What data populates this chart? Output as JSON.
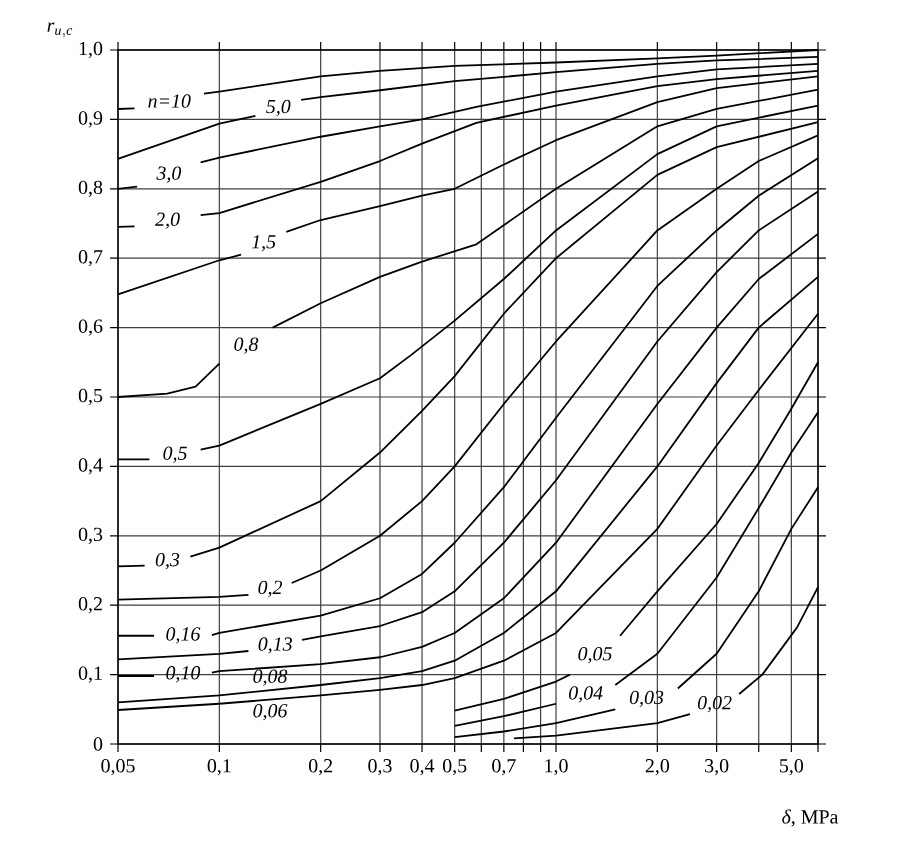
{
  "chart_data": {
    "type": "line",
    "xlabel": "*δ*, MPa",
    "ylabel": "r_{u, c}",
    "log": "x",
    "grid": true,
    "xlim": [
      0.05,
      6
    ],
    "ylim": [
      0,
      1
    ],
    "xticks": [
      {
        "value": 0.05,
        "label": "0,05"
      },
      {
        "value": 0.1,
        "label": "0,1"
      },
      {
        "value": 0.2,
        "label": "0,2"
      },
      {
        "value": 0.3,
        "label": "0,3"
      },
      {
        "value": 0.4,
        "label": "0,4"
      },
      {
        "value": 0.5,
        "label": "0,5"
      },
      {
        "value": 0.6,
        "label": null
      },
      {
        "value": 0.7,
        "label": "0,7"
      },
      {
        "value": 0.8,
        "label": null
      },
      {
        "value": 0.9,
        "label": null
      },
      {
        "value": 1.0,
        "label": "1,0"
      },
      {
        "value": 2.0,
        "label": "2,0"
      },
      {
        "value": 3.0,
        "label": "3,0"
      },
      {
        "value": 4.0,
        "label": null
      },
      {
        "value": 5.0,
        "label": "5,0"
      },
      {
        "value": 6.0,
        "label": null
      }
    ],
    "yticks": [
      0,
      {
        "value": 0.1,
        "label": "0,1"
      },
      {
        "value": 0.2,
        "label": "0,2"
      },
      {
        "value": 0.3,
        "label": "0,3"
      },
      {
        "value": 0.4,
        "label": "0,4"
      },
      {
        "value": 0.5,
        "label": "0,5"
      },
      {
        "value": 0.6,
        "label": "0,6"
      },
      {
        "value": 0.7,
        "label": "0,7"
      },
      {
        "value": 0.8,
        "label": "0,8"
      },
      {
        "value": 0.9,
        "label": "0,9"
      },
      {
        "value": 1.0,
        "label": "1,0"
      }
    ],
    "series": [
      {
        "name": "*n*=10",
        "color": "#000000",
        "x": [
          0.05,
          0.056,
          null,
          0.09,
          0.1,
          0.2,
          0.3,
          0.5,
          1,
          2,
          3,
          6
        ],
        "values": [
          0.915,
          0.916,
          null,
          0.937,
          0.94,
          0.962,
          0.97,
          0.977,
          0.982,
          0.988,
          0.992,
          1.0
        ]
      },
      {
        "name": "5,0",
        "color": "#000000",
        "x": [
          0.05,
          0.1,
          0.128,
          null,
          0.175,
          0.2,
          0.3,
          0.5,
          1,
          2,
          3,
          6
        ],
        "values": [
          0.843,
          0.894,
          0.905,
          null,
          0.928,
          0.932,
          0.942,
          0.955,
          0.968,
          0.98,
          0.985,
          0.99
        ]
      },
      {
        "name": "3,0",
        "color": "#000000",
        "x": [
          0.05,
          0.057,
          null,
          0.088,
          0.1,
          0.2,
          0.3,
          0.4,
          0.58,
          1,
          2,
          3,
          6
        ],
        "values": [
          0.8,
          0.803,
          null,
          0.838,
          0.845,
          0.875,
          0.89,
          0.9,
          0.918,
          0.94,
          0.962,
          0.972,
          0.98
        ]
      },
      {
        "name": "2,0",
        "color": "#000000",
        "x": [
          0.05,
          0.056,
          null,
          0.088,
          0.1,
          0.2,
          0.3,
          0.4,
          0.58,
          1,
          2,
          3,
          6
        ],
        "values": [
          0.745,
          0.746,
          null,
          0.762,
          0.765,
          0.81,
          0.84,
          0.865,
          0.895,
          0.92,
          0.948,
          0.958,
          0.97
        ]
      },
      {
        "name": "1,5",
        "color": "#000000",
        "x": [
          0.05,
          0.1,
          0.116,
          null,
          0.158,
          0.2,
          0.3,
          0.4,
          0.5,
          0.7,
          1,
          2,
          3,
          6
        ],
        "values": [
          0.648,
          0.697,
          0.705,
          null,
          0.738,
          0.755,
          0.775,
          0.79,
          0.8,
          0.835,
          0.87,
          0.925,
          0.945,
          0.962
        ]
      },
      {
        "name": "0,8",
        "color": "#000000",
        "x": [
          0.05,
          0.07,
          0.085,
          0.1,
          null,
          0.144,
          0.2,
          0.3,
          0.4,
          0.58,
          1,
          2,
          3,
          6
        ],
        "values": [
          0.5,
          0.505,
          0.515,
          0.548,
          null,
          0.6,
          0.635,
          0.673,
          0.695,
          0.72,
          0.8,
          0.89,
          0.915,
          0.943
        ]
      },
      {
        "name": "0,5",
        "color": "#000000",
        "x": [
          0.05,
          0.062,
          null,
          0.088,
          0.1,
          0.2,
          0.3,
          0.37,
          0.5,
          0.7,
          1,
          2,
          3,
          6
        ],
        "values": [
          0.41,
          0.41,
          null,
          0.424,
          0.43,
          0.49,
          0.527,
          0.56,
          0.61,
          0.67,
          0.74,
          0.85,
          0.89,
          0.92
        ]
      },
      {
        "name": "0,3",
        "color": "#000000",
        "x": [
          0.05,
          0.06,
          null,
          0.082,
          0.1,
          0.2,
          0.3,
          0.4,
          0.5,
          0.7,
          1,
          2,
          3,
          6
        ],
        "values": [
          0.256,
          0.257,
          null,
          0.27,
          0.283,
          0.35,
          0.42,
          0.48,
          0.53,
          0.62,
          0.7,
          0.82,
          0.86,
          0.896
        ]
      },
      {
        "name": "0,2",
        "color": "#000000",
        "x": [
          0.05,
          0.1,
          0.122,
          null,
          0.164,
          0.2,
          0.3,
          0.4,
          0.5,
          0.7,
          1,
          2,
          3,
          4,
          6
        ],
        "values": [
          0.208,
          0.212,
          0.215,
          null,
          0.232,
          0.25,
          0.3,
          0.35,
          0.4,
          0.49,
          0.58,
          0.74,
          0.8,
          0.84,
          0.877
        ]
      },
      {
        "name": "0,16",
        "color": "#000000",
        "x": [
          0.05,
          0.064,
          null,
          0.095,
          0.1,
          0.2,
          0.3,
          0.4,
          0.5,
          0.7,
          1,
          2,
          3,
          4,
          6
        ],
        "values": [
          0.156,
          0.156,
          null,
          0.157,
          0.16,
          0.185,
          0.21,
          0.245,
          0.29,
          0.37,
          0.47,
          0.66,
          0.74,
          0.79,
          0.844
        ]
      },
      {
        "name": "0,13",
        "color": "#000000",
        "x": [
          0.05,
          0.1,
          0.122,
          null,
          0.176,
          0.2,
          0.3,
          0.4,
          0.5,
          0.7,
          1,
          2,
          3,
          4,
          6
        ],
        "values": [
          0.122,
          0.13,
          0.134,
          null,
          0.15,
          0.155,
          0.17,
          0.19,
          0.22,
          0.29,
          0.38,
          0.58,
          0.68,
          0.74,
          0.796
        ]
      },
      {
        "name": "0,10",
        "color": "#000000",
        "x": [
          0.05,
          0.064,
          null,
          0.095,
          0.1,
          0.2,
          0.3,
          0.4,
          0.5,
          0.7,
          1,
          2,
          3,
          4,
          6
        ],
        "values": [
          0.098,
          0.098,
          null,
          0.103,
          0.105,
          0.115,
          0.125,
          0.14,
          0.16,
          0.21,
          0.29,
          0.49,
          0.6,
          0.67,
          0.735
        ]
      },
      {
        "name": "0,08",
        "color": "#000000",
        "x": [
          0.05,
          0.1,
          0.2,
          0.3,
          0.4,
          0.5,
          0.7,
          1,
          2,
          3,
          4,
          6
        ],
        "values": [
          0.06,
          0.07,
          0.085,
          0.095,
          0.105,
          0.12,
          0.16,
          0.22,
          0.4,
          0.52,
          0.6,
          0.673
        ]
      },
      {
        "name": "0,06",
        "color": "#000000",
        "x": [
          0.05,
          0.1,
          0.2,
          0.3,
          0.4,
          0.5,
          0.7,
          1,
          2,
          3,
          4,
          6
        ],
        "values": [
          0.049,
          0.058,
          0.07,
          0.078,
          0.085,
          0.095,
          0.12,
          0.16,
          0.31,
          0.43,
          0.51,
          0.62
        ]
      },
      {
        "name": "0,05",
        "color": "#000000",
        "x": [
          0.5,
          0.7,
          1,
          1.1,
          null,
          1.55,
          2,
          3,
          4,
          5,
          6
        ],
        "values": [
          0.048,
          0.065,
          0.09,
          0.1,
          null,
          0.156,
          0.22,
          0.317,
          0.405,
          0.483,
          0.55
        ]
      },
      {
        "name": "0,04",
        "color": "#000000",
        "x": [
          0.5,
          0.7,
          1,
          null,
          1.5,
          2,
          3,
          4,
          5,
          6
        ],
        "values": [
          0.026,
          0.04,
          0.058,
          null,
          0.085,
          0.13,
          0.24,
          0.34,
          0.42,
          0.478
        ]
      },
      {
        "name": "0,03",
        "color": "#000000",
        "x": [
          0.5,
          0.7,
          1,
          1.5,
          null,
          2.3,
          3,
          4,
          5,
          6
        ],
        "values": [
          0.01,
          0.018,
          0.03,
          0.05,
          null,
          0.08,
          0.13,
          0.22,
          0.31,
          0.37
        ]
      },
      {
        "name": "0,02",
        "color": "#000000",
        "x": [
          0.75,
          1,
          2,
          2.5,
          null,
          3.5,
          4.1,
          5.2,
          6
        ],
        "values": [
          0.008,
          0.012,
          0.03,
          0.043,
          null,
          0.072,
          0.1,
          0.168,
          0.226
        ]
      }
    ]
  }
}
